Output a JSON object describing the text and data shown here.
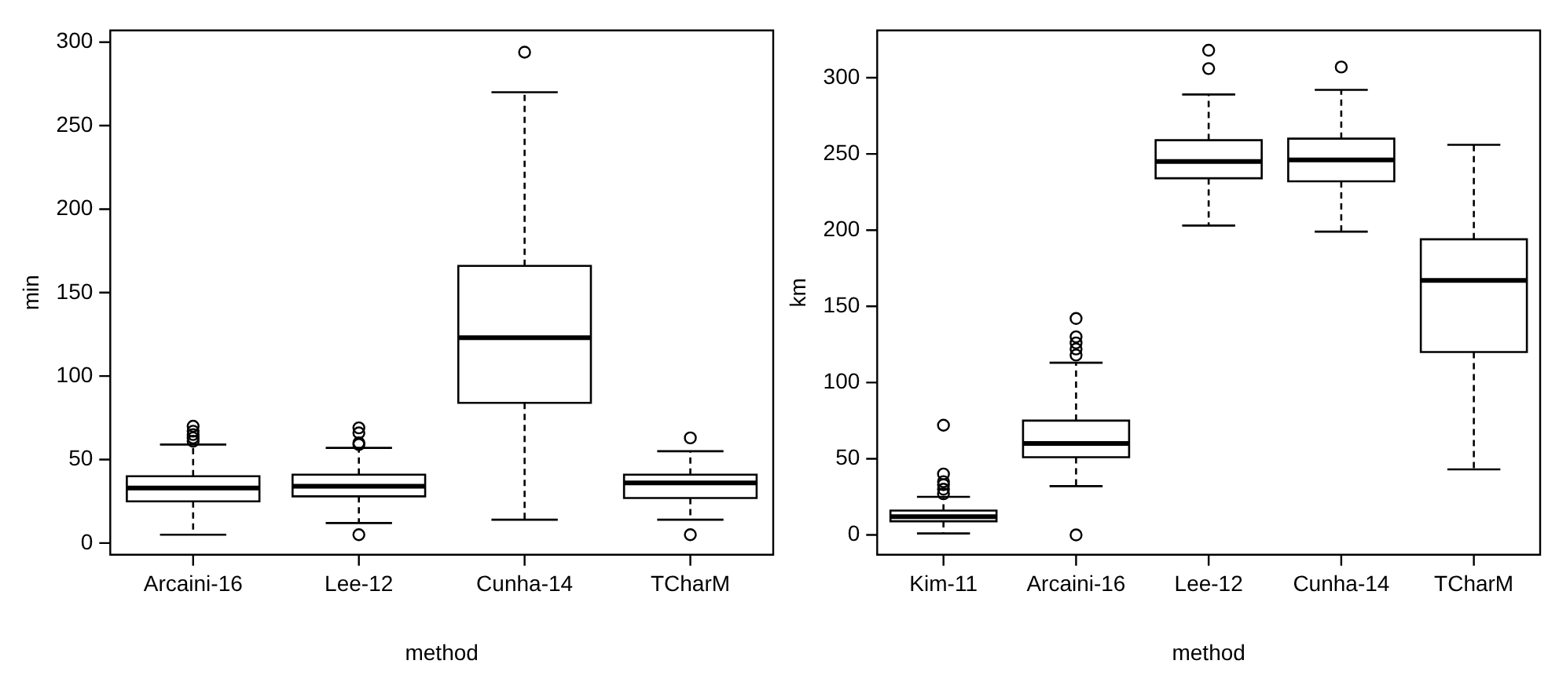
{
  "chart_data": [
    {
      "type": "box",
      "xlabel": "method",
      "ylabel": "min",
      "categories": [
        "Arcaini-16",
        "Lee-12",
        "Cunha-14",
        "TCharM"
      ],
      "ylim": [
        -7,
        307
      ],
      "yticks": [
        0,
        50,
        100,
        150,
        200,
        250,
        300
      ],
      "grid": false,
      "boxes": [
        {
          "low": 5,
          "q1": 25,
          "median": 33,
          "q3": 40,
          "high": 59,
          "outliers": [
            61,
            63,
            65,
            67,
            70
          ]
        },
        {
          "low": 12,
          "q1": 28,
          "median": 34,
          "q3": 41,
          "high": 57,
          "outliers": [
            5,
            59,
            60,
            66,
            69
          ]
        },
        {
          "low": 14,
          "q1": 84,
          "median": 123,
          "q3": 166,
          "high": 270,
          "outliers": [
            294
          ]
        },
        {
          "low": 14,
          "q1": 27,
          "median": 36,
          "q3": 41,
          "high": 55,
          "outliers": [
            5,
            63
          ]
        }
      ]
    },
    {
      "type": "box",
      "xlabel": "method",
      "ylabel": "km",
      "categories": [
        "Kim-11",
        "Arcaini-16",
        "Lee-12",
        "Cunha-14",
        "TCharM"
      ],
      "ylim": [
        -13,
        331
      ],
      "yticks": [
        0,
        50,
        100,
        150,
        200,
        250,
        300
      ],
      "grid": false,
      "boxes": [
        {
          "low": 1,
          "q1": 9,
          "median": 12,
          "q3": 16,
          "high": 25,
          "outliers": [
            27,
            30,
            33,
            35,
            40,
            72
          ]
        },
        {
          "low": 32,
          "q1": 51,
          "median": 60,
          "q3": 75,
          "high": 113,
          "outliers": [
            0,
            118,
            122,
            126,
            130,
            142
          ]
        },
        {
          "low": 203,
          "q1": 234,
          "median": 245,
          "q3": 259,
          "high": 289,
          "outliers": [
            306,
            318
          ]
        },
        {
          "low": 199,
          "q1": 232,
          "median": 246,
          "q3": 260,
          "high": 292,
          "outliers": [
            307
          ]
        },
        {
          "low": 43,
          "q1": 120,
          "median": 167,
          "q3": 194,
          "high": 256
        }
      ]
    }
  ]
}
